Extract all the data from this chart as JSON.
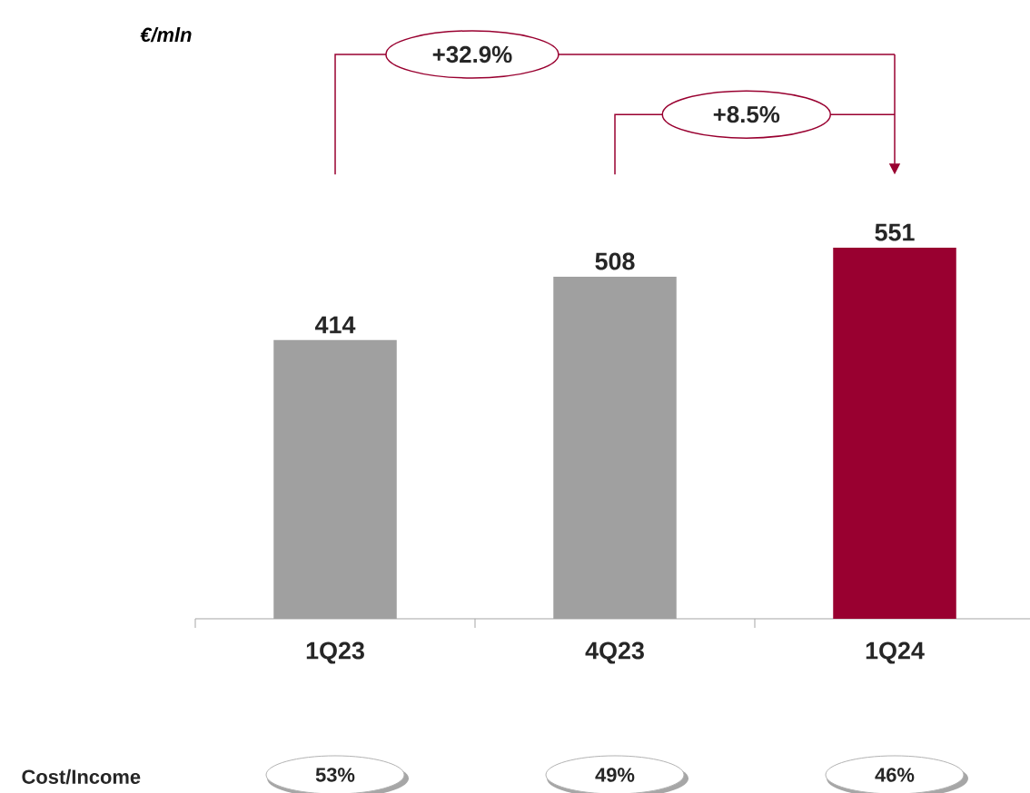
{
  "chart_data": {
    "type": "bar",
    "categories": [
      "1Q23",
      "4Q23",
      "1Q24"
    ],
    "values": [
      414,
      508,
      551
    ],
    "colors": [
      "#a0a0a0",
      "#a0a0a0",
      "#990030"
    ],
    "data_labels": true,
    "annotations": [
      "+32.9%",
      "+8.5%",
      "Cost/Income",
      "53%",
      "49%",
      "46%",
      "€/mln"
    ]
  }
}
